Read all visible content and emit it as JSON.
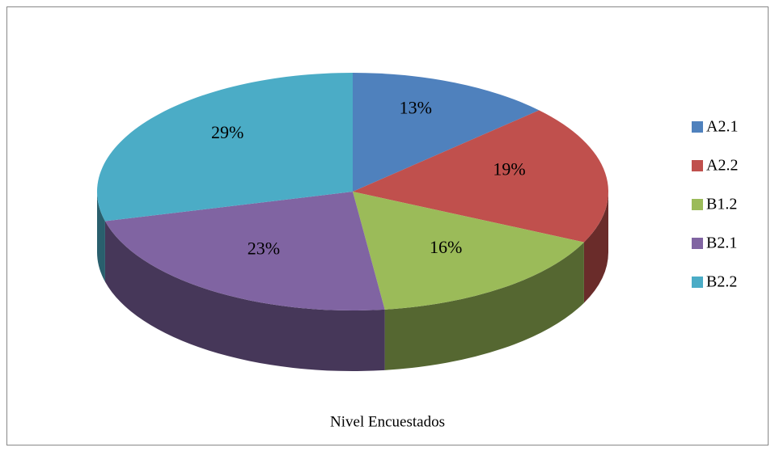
{
  "chart_data": {
    "type": "pie3d",
    "title": "Nivel Encuestados",
    "categories": [
      "A2.1",
      "A2.2",
      "B1.2",
      "B2.1",
      "B2.2"
    ],
    "values": [
      13,
      19,
      16,
      23,
      29
    ],
    "value_labels": [
      "13%",
      "19%",
      "16%",
      "23%",
      "29%"
    ],
    "colors": [
      "#4f81bd",
      "#c0504d",
      "#9bbb59",
      "#8064a2",
      "#4bacc6"
    ],
    "legend": "right"
  }
}
